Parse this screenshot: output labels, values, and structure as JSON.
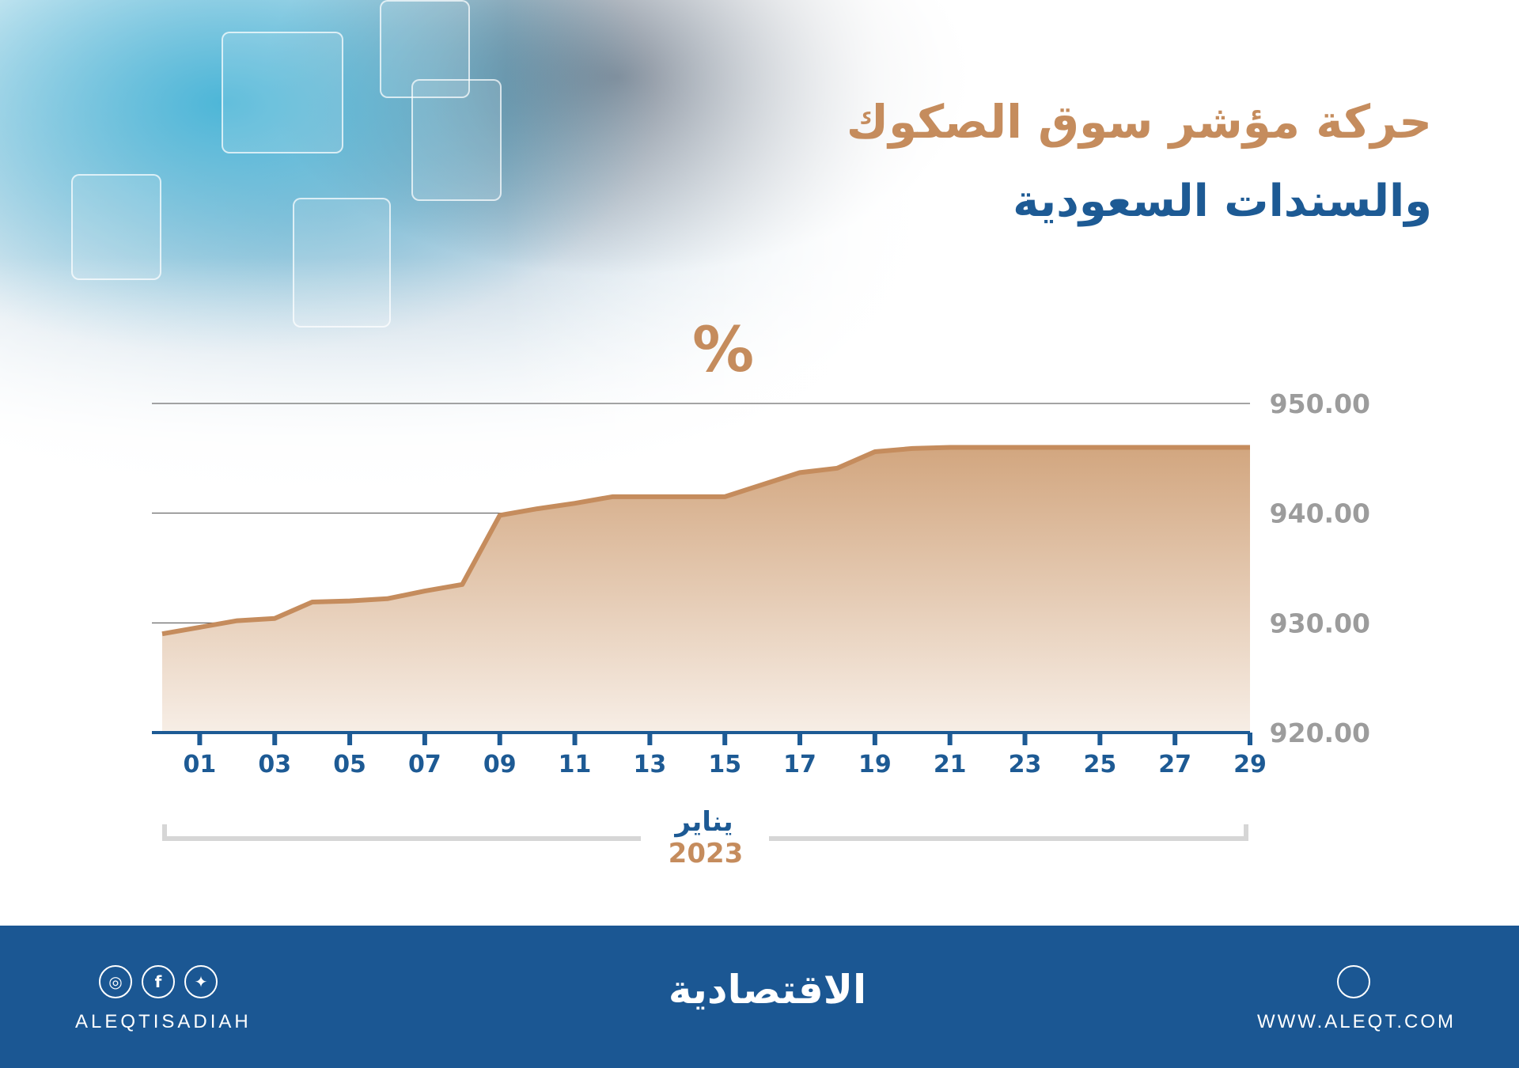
{
  "title_line1": "حركة مؤشر سوق الصكوك",
  "title_line2": "والسندات السعودية",
  "unit_label": "%",
  "chart_data": {
    "type": "area",
    "x_ticks": [
      "01",
      "03",
      "05",
      "07",
      "09",
      "11",
      "13",
      "15",
      "17",
      "19",
      "21",
      "23",
      "25",
      "27",
      "29"
    ],
    "x": [
      "00",
      "01",
      "02",
      "03",
      "04",
      "05",
      "06",
      "07",
      "08",
      "09",
      "10",
      "11",
      "12",
      "13",
      "14",
      "15",
      "16",
      "17",
      "18",
      "19",
      "20",
      "21",
      "22",
      "23",
      "24",
      "25",
      "26",
      "27",
      "28",
      "29"
    ],
    "values": [
      929.0,
      929.6,
      930.2,
      930.4,
      931.9,
      932.0,
      932.2,
      932.9,
      933.5,
      939.8,
      940.4,
      940.9,
      941.5,
      941.5,
      941.5,
      941.5,
      942.6,
      943.7,
      944.1,
      945.6,
      945.9,
      946.0,
      946.0,
      946.0,
      946.0,
      946.0,
      946.0,
      946.0,
      946.0,
      946.0
    ],
    "y_ticks": [
      "920.00",
      "930.00",
      "940.00",
      "950.00"
    ],
    "ylim": [
      920,
      950
    ],
    "xlabel": "يناير",
    "year": "2023",
    "colors": {
      "line": "#c58c5d",
      "fill_top": "#d2a67f",
      "fill_bottom": "#f7eee6",
      "axis": "#1d5a94"
    }
  },
  "footer": {
    "social_icons": [
      "twitter-icon",
      "facebook-icon",
      "instagram-icon"
    ],
    "handle": "ALEQTISADIAH",
    "brand": "الاقتصادية",
    "website_icon": "dribbble-icon",
    "website": "WWW.ALEQT.COM",
    "bg": "#1b5793"
  }
}
